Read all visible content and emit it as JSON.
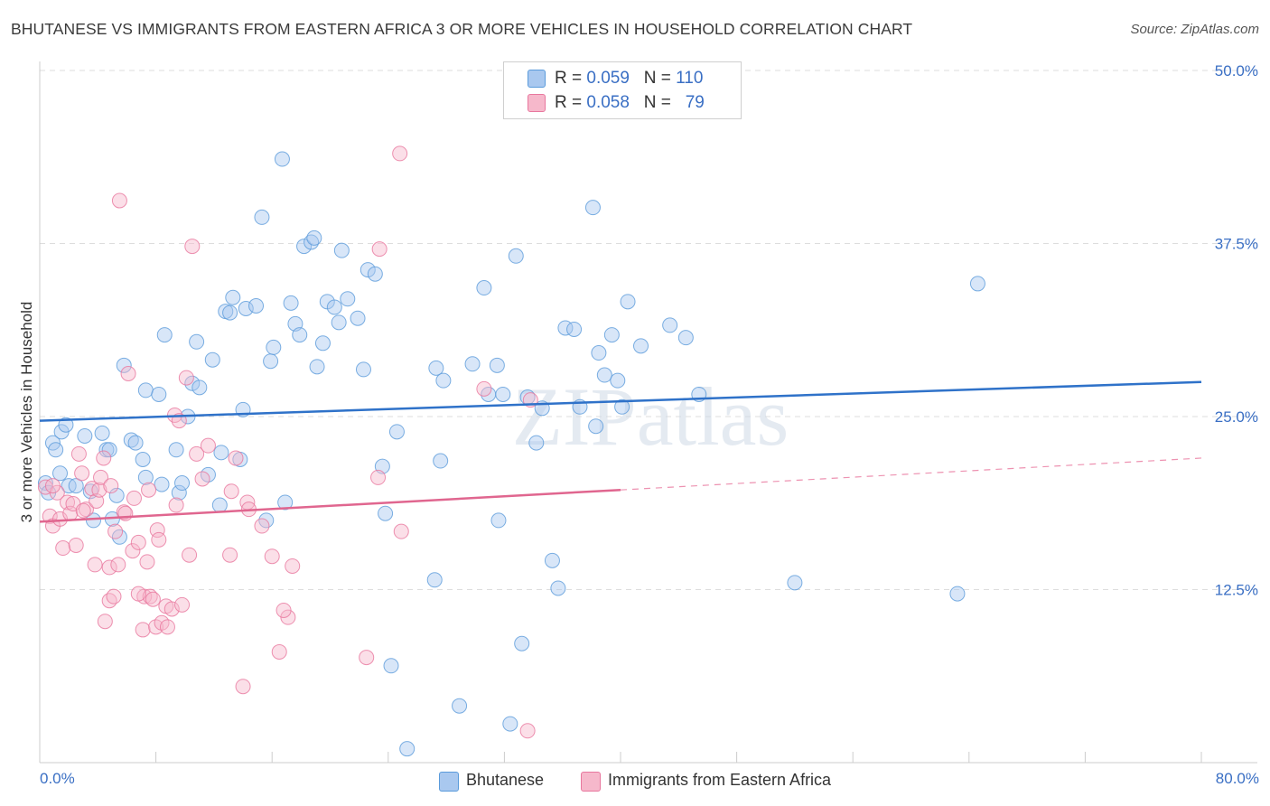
{
  "title": "BHUTANESE VS IMMIGRANTS FROM EASTERN AFRICA 3 OR MORE VEHICLES IN HOUSEHOLD CORRELATION CHART",
  "source": "Source: ZipAtlas.com",
  "watermark": "ZIPatlas",
  "legend": {
    "rows": [
      {
        "r_label": "R = ",
        "r_value": "0.059",
        "n_label": "N = ",
        "n_value": "110",
        "color": "#a9c8ef"
      },
      {
        "r_label": "R = ",
        "r_value": "0.058",
        "n_label": "N = ",
        "n_value": "79",
        "color": "#f6b8cb"
      }
    ]
  },
  "bottom_legend": [
    {
      "label": "Bhutanese",
      "color": "#a9c8ef"
    },
    {
      "label": "Immigrants from Eastern Africa",
      "color": "#f6b8cb"
    }
  ],
  "chart_data": {
    "type": "scatter",
    "xlabel": "",
    "ylabel": "3 or more Vehicles in Household",
    "xlim": [
      0,
      80
    ],
    "ylim": [
      0,
      50
    ],
    "x_tick_labels": [
      "0.0%",
      "80.0%"
    ],
    "y_ticks": [
      12.5,
      25.0,
      37.5,
      50.0
    ],
    "y_tick_labels": [
      "12.5%",
      "25.0%",
      "37.5%",
      "50.0%"
    ],
    "grid": true,
    "series": [
      {
        "name": "Bhutanese",
        "color": "#5b9bdb",
        "fill": "#a9c8ef",
        "trend": {
          "x0": 0,
          "y0": 24.7,
          "x1": 80,
          "y1": 27.5,
          "dashed_from": null
        },
        "points": [
          [
            0.4,
            20.2
          ],
          [
            0.6,
            19.5
          ],
          [
            0.9,
            23.1
          ],
          [
            1.1,
            22.6
          ],
          [
            1.4,
            20.9
          ],
          [
            1.5,
            23.9
          ],
          [
            1.8,
            24.4
          ],
          [
            2.0,
            20.0
          ],
          [
            2.5,
            20.0
          ],
          [
            3.1,
            23.6
          ],
          [
            3.5,
            19.6
          ],
          [
            3.7,
            17.5
          ],
          [
            4.3,
            23.8
          ],
          [
            4.6,
            22.6
          ],
          [
            4.8,
            22.6
          ],
          [
            5.0,
            17.6
          ],
          [
            5.3,
            19.3
          ],
          [
            5.5,
            16.3
          ],
          [
            5.8,
            28.7
          ],
          [
            6.3,
            23.3
          ],
          [
            6.6,
            23.1
          ],
          [
            7.1,
            21.9
          ],
          [
            7.3,
            20.6
          ],
          [
            7.3,
            26.9
          ],
          [
            8.2,
            26.6
          ],
          [
            8.4,
            20.1
          ],
          [
            8.6,
            30.9
          ],
          [
            9.4,
            22.6
          ],
          [
            9.6,
            19.5
          ],
          [
            9.8,
            20.2
          ],
          [
            10.2,
            25.0
          ],
          [
            10.5,
            27.4
          ],
          [
            10.8,
            30.4
          ],
          [
            11.0,
            27.1
          ],
          [
            11.6,
            20.8
          ],
          [
            11.9,
            29.1
          ],
          [
            12.4,
            18.6
          ],
          [
            12.5,
            22.4
          ],
          [
            12.8,
            32.6
          ],
          [
            13.1,
            32.5
          ],
          [
            13.3,
            33.6
          ],
          [
            13.8,
            21.9
          ],
          [
            14.0,
            25.5
          ],
          [
            14.2,
            32.8
          ],
          [
            14.9,
            33.0
          ],
          [
            15.3,
            39.4
          ],
          [
            15.6,
            17.5
          ],
          [
            15.9,
            29.0
          ],
          [
            16.1,
            30.0
          ],
          [
            16.7,
            43.6
          ],
          [
            16.9,
            18.8
          ],
          [
            17.3,
            33.2
          ],
          [
            17.6,
            31.7
          ],
          [
            17.9,
            30.9
          ],
          [
            18.2,
            37.3
          ],
          [
            18.7,
            37.6
          ],
          [
            18.9,
            37.9
          ],
          [
            19.1,
            28.6
          ],
          [
            19.5,
            30.3
          ],
          [
            19.8,
            33.3
          ],
          [
            20.3,
            32.9
          ],
          [
            20.6,
            31.8
          ],
          [
            20.8,
            37.0
          ],
          [
            21.2,
            33.5
          ],
          [
            21.9,
            32.1
          ],
          [
            22.3,
            28.4
          ],
          [
            22.6,
            35.6
          ],
          [
            23.1,
            35.3
          ],
          [
            23.6,
            21.4
          ],
          [
            23.8,
            18.0
          ],
          [
            24.2,
            7.0
          ],
          [
            24.6,
            23.9
          ],
          [
            25.3,
            1.0
          ],
          [
            27.2,
            13.2
          ],
          [
            27.3,
            28.5
          ],
          [
            27.6,
            21.8
          ],
          [
            27.8,
            27.6
          ],
          [
            28.9,
            4.1
          ],
          [
            29.8,
            28.8
          ],
          [
            30.6,
            34.3
          ],
          [
            30.9,
            26.6
          ],
          [
            31.5,
            28.7
          ],
          [
            31.6,
            17.5
          ],
          [
            31.9,
            26.6
          ],
          [
            32.4,
            2.8
          ],
          [
            32.8,
            36.6
          ],
          [
            33.2,
            8.6
          ],
          [
            33.6,
            26.4
          ],
          [
            34.2,
            23.1
          ],
          [
            34.6,
            25.6
          ],
          [
            35.3,
            14.6
          ],
          [
            35.7,
            12.6
          ],
          [
            36.2,
            31.4
          ],
          [
            36.8,
            31.3
          ],
          [
            37.2,
            25.7
          ],
          [
            38.1,
            40.1
          ],
          [
            38.3,
            24.3
          ],
          [
            38.5,
            29.6
          ],
          [
            38.9,
            28.0
          ],
          [
            39.4,
            30.9
          ],
          [
            39.8,
            27.6
          ],
          [
            40.1,
            25.7
          ],
          [
            40.5,
            33.3
          ],
          [
            41.4,
            30.1
          ],
          [
            43.4,
            31.6
          ],
          [
            44.5,
            30.7
          ],
          [
            45.4,
            26.6
          ],
          [
            52.0,
            13.0
          ],
          [
            63.2,
            12.2
          ],
          [
            64.6,
            34.6
          ]
        ]
      },
      {
        "name": "Immigrants from Eastern Africa",
        "color": "#e8779e",
        "fill": "#f6b8cb",
        "trend": {
          "x0": 0,
          "y0": 17.4,
          "x1": 80,
          "y1": 22.0,
          "dashed_from": 40
        },
        "points": [
          [
            0.4,
            19.9
          ],
          [
            0.7,
            17.8
          ],
          [
            0.9,
            17.1
          ],
          [
            1.2,
            19.5
          ],
          [
            1.4,
            17.6
          ],
          [
            1.6,
            15.5
          ],
          [
            1.9,
            18.8
          ],
          [
            2.1,
            18.0
          ],
          [
            2.5,
            15.7
          ],
          [
            2.7,
            22.3
          ],
          [
            2.9,
            20.9
          ],
          [
            3.2,
            18.3
          ],
          [
            3.6,
            19.8
          ],
          [
            3.8,
            14.3
          ],
          [
            3.9,
            18.9
          ],
          [
            4.1,
            19.7
          ],
          [
            4.2,
            20.6
          ],
          [
            4.4,
            22.0
          ],
          [
            4.5,
            10.2
          ],
          [
            4.8,
            11.7
          ],
          [
            4.8,
            14.1
          ],
          [
            5.1,
            12.0
          ],
          [
            5.2,
            16.7
          ],
          [
            5.4,
            14.3
          ],
          [
            5.5,
            40.6
          ],
          [
            5.8,
            18.1
          ],
          [
            6.1,
            28.1
          ],
          [
            6.4,
            15.3
          ],
          [
            6.5,
            19.1
          ],
          [
            6.8,
            15.9
          ],
          [
            7.1,
            9.6
          ],
          [
            7.2,
            12.0
          ],
          [
            7.4,
            14.5
          ],
          [
            7.5,
            19.7
          ],
          [
            7.6,
            12.0
          ],
          [
            7.8,
            11.8
          ],
          [
            8.0,
            9.8
          ],
          [
            8.1,
            16.8
          ],
          [
            8.2,
            16.1
          ],
          [
            8.4,
            10.1
          ],
          [
            8.7,
            11.3
          ],
          [
            8.8,
            9.8
          ],
          [
            9.1,
            11.1
          ],
          [
            9.3,
            25.1
          ],
          [
            9.6,
            24.7
          ],
          [
            9.8,
            11.4
          ],
          [
            10.1,
            27.8
          ],
          [
            10.3,
            15.0
          ],
          [
            10.5,
            37.3
          ],
          [
            10.8,
            22.3
          ],
          [
            11.2,
            20.5
          ],
          [
            11.6,
            22.9
          ],
          [
            13.1,
            15.0
          ],
          [
            13.2,
            19.6
          ],
          [
            13.5,
            22.0
          ],
          [
            14.0,
            5.5
          ],
          [
            14.3,
            18.8
          ],
          [
            14.4,
            18.3
          ],
          [
            15.3,
            17.1
          ],
          [
            16.0,
            14.9
          ],
          [
            16.5,
            8.0
          ],
          [
            17.1,
            10.5
          ],
          [
            17.4,
            14.2
          ],
          [
            22.5,
            7.6
          ],
          [
            23.3,
            20.6
          ],
          [
            23.4,
            37.1
          ],
          [
            24.8,
            44.0
          ],
          [
            24.9,
            16.7
          ],
          [
            30.6,
            27.0
          ],
          [
            33.6,
            2.3
          ],
          [
            33.8,
            26.2
          ],
          [
            0.9,
            20.0
          ],
          [
            2.3,
            18.7
          ],
          [
            3.0,
            18.2
          ],
          [
            4.9,
            20.0
          ],
          [
            5.9,
            18.0
          ],
          [
            6.8,
            12.2
          ],
          [
            9.4,
            18.6
          ],
          [
            16.8,
            11.0
          ]
        ]
      }
    ]
  }
}
